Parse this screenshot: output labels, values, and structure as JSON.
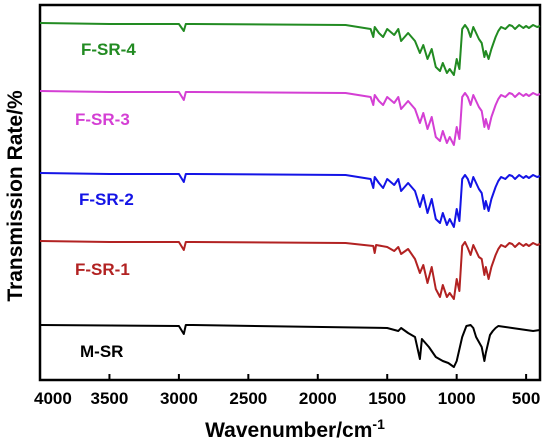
{
  "chart_data": {
    "type": "line",
    "title": "",
    "xlabel": "Wavenumber/cm",
    "xlabel_superscript": "-1",
    "ylabel": "Transmission Rate/%",
    "xlim": [
      4000,
      400
    ],
    "x_reversed": true,
    "y_ticks_shown": false,
    "x_ticks": [
      4000,
      3500,
      3000,
      2500,
      2000,
      1500,
      1000,
      500
    ],
    "x_tick_labels": [
      "4000",
      "3500",
      "3000",
      "2500",
      "2000",
      "1500",
      "1000",
      "500"
    ],
    "legend": "inline-labels-left",
    "series": [
      {
        "name": "M-SR",
        "color": "#000000",
        "x": [
          4000,
          3000,
          2965,
          2950,
          2900,
          1500,
          1420,
          1400,
          1350,
          1300,
          1265,
          1250,
          1200,
          1150,
          1100,
          1060,
          1020,
          1000,
          960,
          930,
          900,
          880,
          860,
          820,
          800,
          790,
          760,
          740,
          720,
          700,
          650,
          600,
          500,
          450,
          400
        ],
        "y": [
          0,
          -1,
          -9,
          0,
          0,
          -3,
          -6,
          -3,
          -8,
          -12,
          -34,
          -14,
          -22,
          -32,
          -36,
          -38,
          -42,
          -36,
          -12,
          -1,
          0,
          -3,
          -12,
          -22,
          -36,
          -28,
          -10,
          -6,
          -3,
          -1,
          -2,
          -3,
          -5,
          -6,
          -5
        ]
      },
      {
        "name": "F-SR-1",
        "color": "#b22222",
        "x": [
          4000,
          3500,
          3000,
          2965,
          2950,
          2900,
          1800,
          1600,
          1590,
          1580,
          1500,
          1450,
          1420,
          1400,
          1350,
          1300,
          1265,
          1240,
          1210,
          1180,
          1150,
          1120,
          1100,
          1070,
          1050,
          1020,
          1000,
          980,
          960,
          940,
          920,
          900,
          880,
          860,
          840,
          820,
          800,
          790,
          770,
          750,
          720,
          700,
          680,
          650,
          620,
          600,
          580,
          550,
          520,
          500,
          480,
          450,
          420,
          400
        ],
        "y": [
          0,
          -1,
          -1,
          -9,
          -1,
          -1,
          -2,
          -5,
          -12,
          -4,
          -6,
          -10,
          -6,
          -13,
          -8,
          -18,
          -32,
          -24,
          -42,
          -26,
          -48,
          -56,
          -44,
          -56,
          -52,
          -58,
          -38,
          -50,
          -5,
          -1,
          -7,
          -14,
          -4,
          -10,
          -16,
          -18,
          -34,
          -26,
          -38,
          -26,
          -14,
          -8,
          -4,
          -6,
          -2,
          -3,
          -6,
          -2,
          -5,
          -3,
          -5,
          -2,
          -4,
          -3
        ]
      },
      {
        "name": "F-SR-2",
        "color": "#1414e6",
        "x": [
          4000,
          3500,
          3000,
          2965,
          2950,
          2900,
          1800,
          1620,
          1600,
          1590,
          1560,
          1530,
          1500,
          1450,
          1420,
          1400,
          1350,
          1300,
          1265,
          1240,
          1210,
          1180,
          1150,
          1120,
          1100,
          1070,
          1050,
          1020,
          1000,
          980,
          960,
          940,
          920,
          900,
          880,
          860,
          840,
          820,
          800,
          790,
          770,
          750,
          720,
          700,
          680,
          650,
          620,
          600,
          580,
          550,
          520,
          500,
          480,
          450,
          420,
          400
        ],
        "y": [
          0,
          -1,
          -1,
          -9,
          -1,
          -1,
          -2,
          -6,
          -15,
          -4,
          -10,
          -15,
          -6,
          -12,
          -6,
          -18,
          -10,
          -18,
          -34,
          -22,
          -40,
          -26,
          -46,
          -50,
          -40,
          -52,
          -46,
          -54,
          -36,
          -48,
          -6,
          -2,
          -6,
          -14,
          -4,
          -10,
          -16,
          -20,
          -36,
          -28,
          -38,
          -26,
          -14,
          -8,
          -4,
          -6,
          -2,
          -3,
          -6,
          -2,
          -5,
          -3,
          -5,
          -2,
          -4,
          -3
        ]
      },
      {
        "name": "F-SR-3",
        "color": "#d43fd4",
        "x": [
          4000,
          3500,
          3000,
          2965,
          2950,
          2900,
          1800,
          1620,
          1600,
          1590,
          1560,
          1530,
          1500,
          1450,
          1420,
          1400,
          1350,
          1300,
          1265,
          1240,
          1210,
          1180,
          1150,
          1120,
          1100,
          1070,
          1050,
          1020,
          1000,
          980,
          960,
          940,
          920,
          900,
          880,
          860,
          840,
          820,
          800,
          790,
          770,
          750,
          720,
          700,
          680,
          650,
          620,
          600,
          580,
          550,
          520,
          500,
          480,
          450,
          420,
          400
        ],
        "y": [
          0,
          -1,
          -1,
          -9,
          -1,
          -1,
          -2,
          -6,
          -14,
          -4,
          -10,
          -14,
          -6,
          -12,
          -6,
          -18,
          -10,
          -18,
          -32,
          -22,
          -38,
          -26,
          -46,
          -50,
          -40,
          -52,
          -46,
          -54,
          -36,
          -48,
          -6,
          -2,
          -6,
          -14,
          -4,
          -10,
          -16,
          -20,
          -36,
          -28,
          -38,
          -26,
          -14,
          -8,
          -4,
          -6,
          -2,
          -3,
          -6,
          -2,
          -5,
          -3,
          -5,
          -2,
          -4,
          -3
        ]
      },
      {
        "name": "F-SR-4",
        "color": "#228b22",
        "x": [
          4000,
          3500,
          3000,
          2965,
          2950,
          2900,
          1800,
          1620,
          1600,
          1590,
          1560,
          1530,
          1500,
          1450,
          1420,
          1400,
          1350,
          1300,
          1265,
          1240,
          1210,
          1180,
          1150,
          1120,
          1100,
          1070,
          1050,
          1020,
          1000,
          980,
          960,
          940,
          920,
          900,
          880,
          860,
          840,
          820,
          800,
          790,
          770,
          750,
          720,
          700,
          680,
          650,
          620,
          600,
          580,
          550,
          520,
          500,
          480,
          450,
          420,
          400
        ],
        "y": [
          0,
          -1,
          -1,
          -8,
          -1,
          -1,
          -2,
          -6,
          -14,
          -4,
          -10,
          -14,
          -6,
          -12,
          -6,
          -18,
          -10,
          -18,
          -30,
          -22,
          -36,
          -26,
          -44,
          -48,
          -40,
          -50,
          -46,
          -52,
          -36,
          -46,
          -6,
          -2,
          -6,
          -14,
          -4,
          -10,
          -16,
          -20,
          -34,
          -28,
          -36,
          -26,
          -14,
          -8,
          -4,
          -6,
          -2,
          -3,
          -6,
          -2,
          -5,
          -3,
          -5,
          -2,
          -4,
          -3
        ]
      }
    ]
  }
}
